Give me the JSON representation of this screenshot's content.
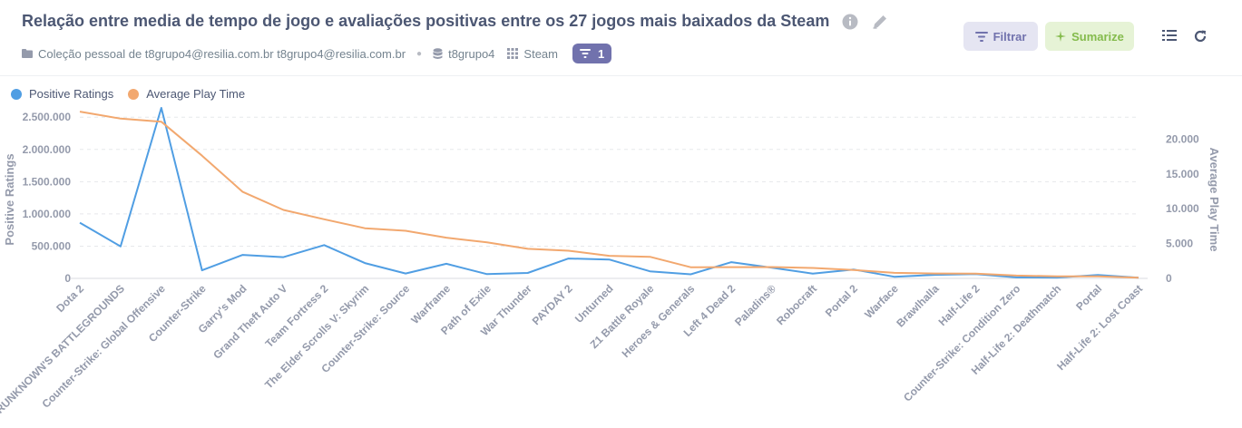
{
  "header": {
    "title": "Relação entre media de tempo de jogo e avaliações positivas entre os 27 jogos mais baixados da Steam",
    "collection": "Coleção pessoal de t8grupo4@resilia.com.br t8grupo4@resilia.com.br",
    "database": "t8grupo4",
    "table": "Steam",
    "filter_count": "1",
    "filter_button": "Filtrar",
    "summarize_button": "Sumarize"
  },
  "colors": {
    "series1": "#509ee3",
    "series2": "#f2a86f",
    "grid": "#e6e8eb",
    "axis_text": "#949aab"
  },
  "chart_data": {
    "type": "line",
    "categories": [
      "Dota 2",
      "PLAYERUNKNOWN'S BATTLEGROUNDS",
      "Counter-Strike: Global Offensive",
      "Counter-Strike",
      "Garry's Mod",
      "Grand Theft Auto V",
      "Team Fortress 2",
      "The Elder Scrolls V: Skyrim",
      "Counter-Strike: Source",
      "Warframe",
      "Path of Exile",
      "War Thunder",
      "PAYDAY 2",
      "Unturned",
      "Z1 Battle Royale",
      "Heroes & Generals",
      "Left 4 Dead 2",
      "Paladins®",
      "Robocraft",
      "Portal 2",
      "Warface",
      "Brawlhalla",
      "Half-Life 2",
      "Counter-Strike: Condition Zero",
      "Half-Life 2: Deathmatch",
      "Portal",
      "Half-Life 2: Lost Coast"
    ],
    "series": [
      {
        "name": "Positive Ratings",
        "axis": "left",
        "values": [
          863507,
          496184,
          2644404,
          124534,
          363721,
          329061,
          515879,
          237303,
          76640,
          226541,
          66029,
          83852,
          308657,
          292574,
          109626,
          63895,
          251789,
          166384,
          75000,
          138220,
          25000,
          55000,
          67902,
          15000,
          12000,
          51801,
          10000
        ]
      },
      {
        "name": "Average Play Time",
        "axis": "right",
        "values": [
          23944,
          22938,
          22494,
          17612,
          12422,
          9837,
          8495,
          7200,
          6842,
          5845,
          5165,
          4240,
          3975,
          3248,
          3100,
          1600,
          1615,
          1634,
          1500,
          1200,
          800,
          700,
          691,
          400,
          300,
          300,
          100
        ]
      }
    ],
    "xlabel": "",
    "ylabel_left": "Positive Ratings",
    "ylabel_right": "Average Play Time",
    "yticks_left": [
      "0",
      "500.000",
      "1.000.000",
      "1.500.000",
      "2.000.000",
      "2.500.000"
    ],
    "yticks_left_values": [
      0,
      500000,
      1000000,
      1500000,
      2000000,
      2500000
    ],
    "ylim_left": [
      0,
      2700000
    ],
    "yticks_right": [
      "0",
      "5.000",
      "10.000",
      "15.000",
      "20.000"
    ],
    "yticks_right_values": [
      0,
      5000,
      10000,
      15000,
      20000
    ],
    "ylim_right": [
      0,
      25000
    ],
    "grid": true,
    "legend": "top-left"
  }
}
